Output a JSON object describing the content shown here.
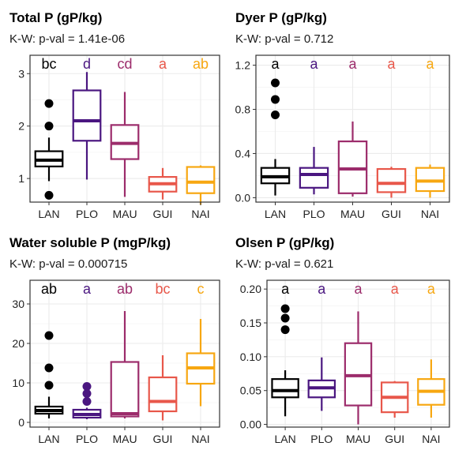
{
  "colors": {
    "LAN": "#000000",
    "PLO": "#4a1680",
    "MAU": "#9c2c6b",
    "GUI": "#e8574a",
    "NAI": "#f7a711"
  },
  "chart_data": [
    {
      "type": "box",
      "title": "Total P (gP/kg)",
      "subtitle": "K-W: p-val = 1.41e-06",
      "categories": [
        "LAN",
        "PLO",
        "MAU",
        "GUI",
        "NAI"
      ],
      "ylim": [
        0.55,
        3.35
      ],
      "yticks": [
        1,
        2,
        3
      ],
      "grid": true,
      "group_letters": [
        "bc",
        "d",
        "cd",
        "a",
        "ab"
      ],
      "boxes": [
        {
          "min": 0.95,
          "q1": 1.23,
          "median": 1.35,
          "q3": 1.52,
          "max": 1.78,
          "outliers": [
            2.43,
            2.0,
            0.68
          ]
        },
        {
          "min": 0.98,
          "q1": 1.72,
          "median": 2.1,
          "q3": 2.68,
          "max": 3.03,
          "outliers": []
        },
        {
          "min": 0.65,
          "q1": 1.37,
          "median": 1.67,
          "q3": 2.02,
          "max": 2.65,
          "outliers": []
        },
        {
          "min": 0.6,
          "q1": 0.75,
          "median": 0.9,
          "q3": 1.03,
          "max": 1.2,
          "outliers": []
        },
        {
          "min": 0.5,
          "q1": 0.72,
          "median": 0.93,
          "q3": 1.22,
          "max": 1.25,
          "outliers": []
        }
      ]
    },
    {
      "type": "box",
      "title": "Dyer P (gP/kg)",
      "subtitle": "K-W: p-val = 0.712",
      "categories": [
        "LAN",
        "PLO",
        "MAU",
        "GUI",
        "NAI"
      ],
      "ylim": [
        -0.04,
        1.29
      ],
      "yticks": [
        "0.0",
        "0.4",
        "0.8",
        "1.2"
      ],
      "grid": true,
      "group_letters": [
        "a",
        "a",
        "a",
        "a",
        "a"
      ],
      "boxes": [
        {
          "min": 0.02,
          "q1": 0.13,
          "median": 0.19,
          "q3": 0.27,
          "max": 0.35,
          "outliers": [
            1.04,
            0.89,
            0.75
          ]
        },
        {
          "min": 0.03,
          "q1": 0.09,
          "median": 0.21,
          "q3": 0.27,
          "max": 0.46,
          "outliers": []
        },
        {
          "min": 0.01,
          "q1": 0.04,
          "median": 0.26,
          "q3": 0.51,
          "max": 0.69,
          "outliers": []
        },
        {
          "min": 0.0,
          "q1": 0.05,
          "median": 0.13,
          "q3": 0.26,
          "max": 0.28,
          "outliers": []
        },
        {
          "min": 0.0,
          "q1": 0.06,
          "median": 0.15,
          "q3": 0.27,
          "max": 0.3,
          "outliers": []
        }
      ]
    },
    {
      "type": "box",
      "title": "Water soluble P (mgP/kg)",
      "subtitle": "K-W: p-val = 0.000715",
      "categories": [
        "LAN",
        "PLO",
        "MAU",
        "GUI",
        "NAI"
      ],
      "ylim": [
        -1.2,
        36
      ],
      "yticks": [
        0,
        10,
        20,
        30
      ],
      "grid": true,
      "group_letters": [
        "ab",
        "a",
        "ab",
        "bc",
        "c"
      ],
      "boxes": [
        {
          "min": 1.0,
          "q1": 2.2,
          "median": 3.0,
          "q3": 4.0,
          "max": 6.5,
          "outliers": [
            22,
            13.8,
            9.4
          ]
        },
        {
          "min": 0.8,
          "q1": 1.2,
          "median": 2.0,
          "q3": 3.2,
          "max": 3.7,
          "outliers": [
            9.1,
            7.3,
            5.3
          ]
        },
        {
          "min": 1.0,
          "q1": 1.5,
          "median": 2.2,
          "q3": 15.3,
          "max": 28.2,
          "outliers": []
        },
        {
          "min": 0.5,
          "q1": 2.8,
          "median": 5.3,
          "q3": 11.4,
          "max": 17.0,
          "outliers": []
        },
        {
          "min": 4.1,
          "q1": 9.8,
          "median": 13.8,
          "q3": 17.5,
          "max": 26.2,
          "outliers": []
        }
      ]
    },
    {
      "type": "box",
      "title": "Olsen P (gP/kg)",
      "subtitle": "K-W: p-val = 0.621",
      "categories": [
        "LAN",
        "PLO",
        "MAU",
        "GUI",
        "NAI"
      ],
      "ylim": [
        -0.004,
        0.213
      ],
      "yticks": [
        "0.00",
        "0.05",
        "0.10",
        "0.15",
        "0.20"
      ],
      "grid": true,
      "group_letters": [
        "a",
        "a",
        "a",
        "a",
        "a"
      ],
      "boxes": [
        {
          "min": 0.012,
          "q1": 0.04,
          "median": 0.05,
          "q3": 0.067,
          "max": 0.08,
          "outliers": [
            0.171,
            0.157,
            0.14
          ]
        },
        {
          "min": 0.02,
          "q1": 0.04,
          "median": 0.054,
          "q3": 0.065,
          "max": 0.099,
          "outliers": []
        },
        {
          "min": 0.0,
          "q1": 0.028,
          "median": 0.072,
          "q3": 0.12,
          "max": 0.167,
          "outliers": []
        },
        {
          "min": 0.01,
          "q1": 0.018,
          "median": 0.04,
          "q3": 0.062,
          "max": 0.064,
          "outliers": []
        },
        {
          "min": 0.01,
          "q1": 0.029,
          "median": 0.049,
          "q3": 0.067,
          "max": 0.096,
          "outliers": []
        }
      ]
    }
  ]
}
